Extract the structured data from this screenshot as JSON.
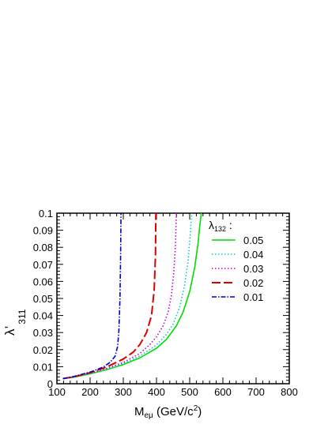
{
  "chart_data": {
    "type": "line",
    "xlabel": {
      "main": "M",
      "sub": "eμ",
      "rest": " (GeV/c",
      "sup": "2",
      "close": ")"
    },
    "ylabel": {
      "main": "λ’",
      "sub": "311"
    },
    "xlim": [
      100,
      800
    ],
    "ylim": [
      0,
      0.1
    ],
    "xticks": [
      "100",
      "200",
      "300",
      "400",
      "500",
      "600",
      "700",
      "800"
    ],
    "yticks": [
      "0",
      "0.01",
      "0.02",
      "0.03",
      "0.04",
      "0.05",
      "0.06",
      "0.07",
      "0.08",
      "0.09",
      "0.1"
    ],
    "grid": false,
    "legend": {
      "title_main": "λ",
      "title_sub": "132",
      "title_tail": " :",
      "placement": "top-right"
    },
    "series": [
      {
        "name": "0.05",
        "color": "#00dd00",
        "dash": "solid",
        "points": [
          [
            118,
            0.003
          ],
          [
            150,
            0.0038
          ],
          [
            200,
            0.0058
          ],
          [
            250,
            0.0083
          ],
          [
            300,
            0.0112
          ],
          [
            350,
            0.0152
          ],
          [
            400,
            0.0208
          ],
          [
            430,
            0.026
          ],
          [
            460,
            0.034
          ],
          [
            480,
            0.042
          ],
          [
            500,
            0.054
          ],
          [
            515,
            0.068
          ],
          [
            525,
            0.082
          ],
          [
            530,
            0.092
          ],
          [
            535,
            0.1
          ]
        ]
      },
      {
        "name": "0.04",
        "color": "#00cccc",
        "dash": "dotted",
        "points": [
          [
            118,
            0.003
          ],
          [
            150,
            0.0038
          ],
          [
            200,
            0.006
          ],
          [
            250,
            0.0086
          ],
          [
            300,
            0.0118
          ],
          [
            350,
            0.0163
          ],
          [
            400,
            0.0228
          ],
          [
            430,
            0.029
          ],
          [
            450,
            0.035
          ],
          [
            470,
            0.045
          ],
          [
            485,
            0.058
          ],
          [
            495,
            0.072
          ],
          [
            502,
            0.088
          ],
          [
            506,
            0.1
          ]
        ]
      },
      {
        "name": "0.03",
        "color": "#cc00cc",
        "dash": "dotted",
        "points": [
          [
            118,
            0.003
          ],
          [
            150,
            0.004
          ],
          [
            200,
            0.0062
          ],
          [
            250,
            0.009
          ],
          [
            300,
            0.0125
          ],
          [
            350,
            0.0178
          ],
          [
            380,
            0.023
          ],
          [
            400,
            0.0275
          ],
          [
            420,
            0.034
          ],
          [
            435,
            0.042
          ],
          [
            445,
            0.052
          ],
          [
            452,
            0.065
          ],
          [
            457,
            0.08
          ],
          [
            460,
            0.1
          ]
        ]
      },
      {
        "name": "0.02",
        "color": "#dd0000",
        "dash": "longdash",
        "points": [
          [
            118,
            0.003
          ],
          [
            150,
            0.004
          ],
          [
            200,
            0.0065
          ],
          [
            250,
            0.0098
          ],
          [
            300,
            0.0145
          ],
          [
            330,
            0.0185
          ],
          [
            350,
            0.023
          ],
          [
            370,
            0.03
          ],
          [
            385,
            0.04
          ],
          [
            393,
            0.055
          ],
          [
            397,
            0.075
          ],
          [
            398,
            0.1
          ]
        ]
      },
      {
        "name": "0.01",
        "color": "#0000cc",
        "dash": "dashdot",
        "points": [
          [
            118,
            0.003
          ],
          [
            150,
            0.0042
          ],
          [
            200,
            0.0068
          ],
          [
            240,
            0.0098
          ],
          [
            260,
            0.0125
          ],
          [
            275,
            0.016
          ],
          [
            283,
            0.022
          ],
          [
            287,
            0.032
          ],
          [
            290,
            0.05
          ],
          [
            292,
            0.075
          ],
          [
            293,
            0.1
          ]
        ]
      }
    ]
  }
}
